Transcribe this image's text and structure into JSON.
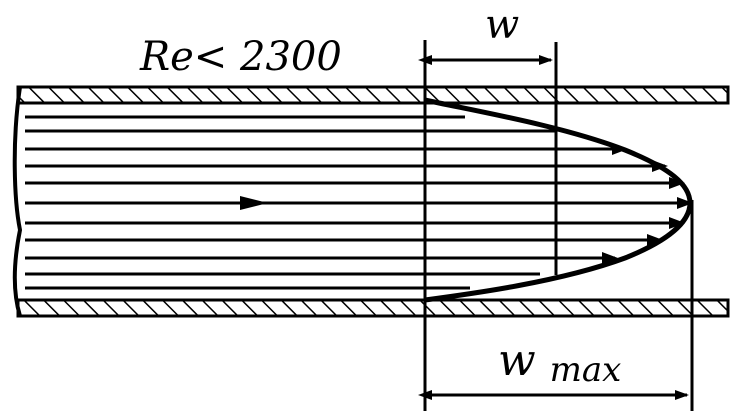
{
  "labels": {
    "reynolds": "Re< 2300",
    "mean_velocity": "w",
    "max_velocity_base": "w",
    "max_velocity_sub": "max"
  },
  "colors": {
    "ink": "#000000",
    "background": "#ffffff"
  }
}
